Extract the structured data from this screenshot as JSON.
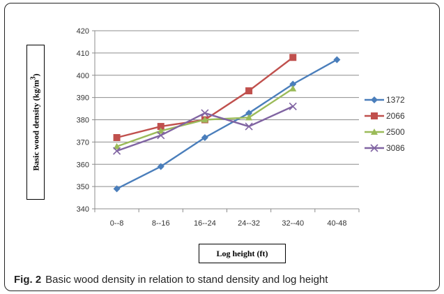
{
  "caption": {
    "label": "Fig. 2",
    "text": "Basic wood density in relation to stand density and log height"
  },
  "chart_data": {
    "type": "line",
    "title": "",
    "xlabel": "Log height (ft)",
    "ylabel_main": "Basic wood density (kg/m",
    "ylabel_sup": "3",
    "ylabel_end": ")",
    "categories": [
      "0--8",
      "8--16",
      "16--24",
      "24--32",
      "32--40",
      "40-48"
    ],
    "ylim": [
      340,
      420
    ],
    "yticks": [
      340,
      350,
      360,
      370,
      380,
      390,
      400,
      410,
      420
    ],
    "grid": "horizontal",
    "legend_position": "right",
    "series": [
      {
        "name": "1372",
        "color": "#4a7ebb",
        "marker": "diamond",
        "values": [
          349,
          359,
          372,
          383,
          396,
          407
        ]
      },
      {
        "name": "2066",
        "color": "#c0504d",
        "marker": "square",
        "values": [
          372,
          377,
          380,
          393,
          408,
          null
        ]
      },
      {
        "name": "2500",
        "color": "#9bbb59",
        "marker": "triangle",
        "values": [
          368,
          375,
          380,
          381,
          394,
          null
        ]
      },
      {
        "name": "3086",
        "color": "#8064a2",
        "marker": "x",
        "values": [
          366,
          373,
          383,
          377,
          386,
          null
        ]
      }
    ]
  }
}
